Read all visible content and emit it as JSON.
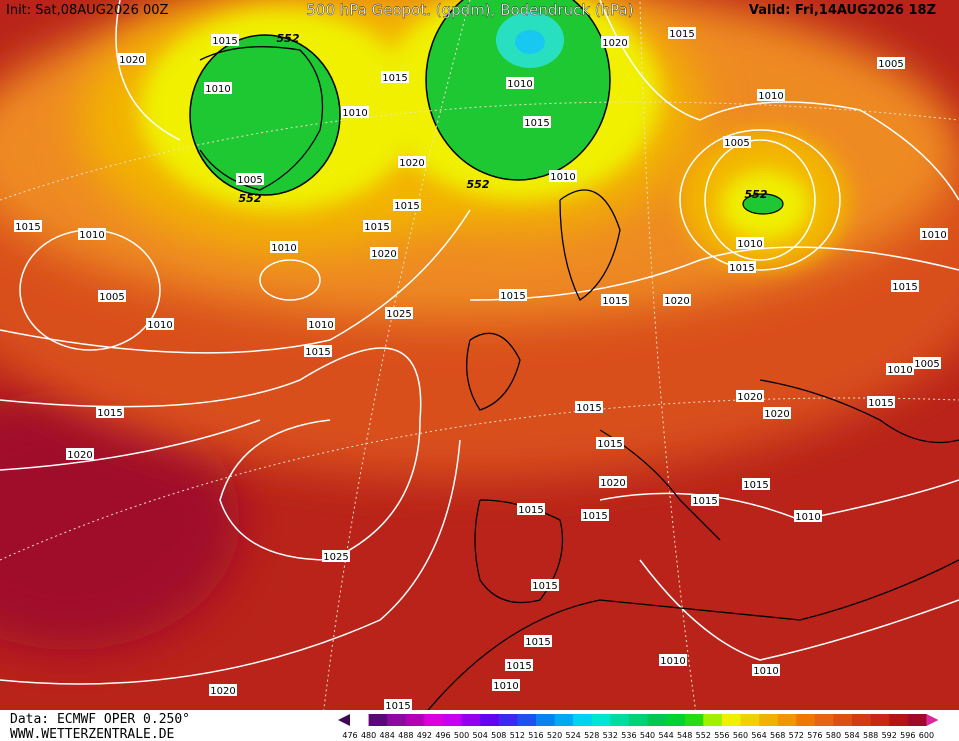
{
  "header": {
    "init": "Init: Sat,08AUG2026 00Z",
    "title": "500 hPa Geopot. (gpdm), Bodendruck (hPa)",
    "valid": "Valid: Fri,14AUG2026 18Z"
  },
  "footer": {
    "source": "Data: ECMWF OPER 0.250°",
    "website": "WWW.WETTERZENTRALE.DE"
  },
  "isobar_labels": [
    "1015",
    "552",
    "1020",
    "1010",
    "1015",
    "1010",
    "1020",
    "1015",
    "1010",
    "1015",
    "1005",
    "1010",
    "1005",
    "552",
    "1010",
    "1015",
    "1020",
    "1010",
    "552",
    "1005",
    "552",
    "1015",
    "1015",
    "1015",
    "1010",
    "1010",
    "1020",
    "1010",
    "1005",
    "1015",
    "1015",
    "1020",
    "1015",
    "1010",
    "1010",
    "1025",
    "1015",
    "1005",
    "1010",
    "1015",
    "1020",
    "1020",
    "1015",
    "1015",
    "1015",
    "1020",
    "1020",
    "1015",
    "1015",
    "1015",
    "1015",
    "1010",
    "1025",
    "1015",
    "1015",
    "1015",
    "1010",
    "1010",
    "1010",
    "1020",
    "1015"
  ],
  "colorbar": {
    "labels": [
      476,
      480,
      484,
      488,
      492,
      496,
      500,
      504,
      508,
      512,
      516,
      520,
      524,
      528,
      532,
      536,
      540,
      544,
      548,
      552,
      556,
      560,
      564,
      568,
      572,
      576,
      580,
      584,
      588,
      592,
      596,
      600
    ],
    "colors": [
      "#3c0a50",
      "#5a0a78",
      "#8c0aa0",
      "#b400b4",
      "#dc00dc",
      "#c800f0",
      "#9600f0",
      "#6400f0",
      "#3c28f0",
      "#1e50f0",
      "#0a82f0",
      "#00aaf0",
      "#00d2f0",
      "#00e6d2",
      "#00dca0",
      "#00d278",
      "#00c850",
      "#00d232",
      "#28dc14",
      "#a0f000",
      "#f0f000",
      "#f0d200",
      "#f0b400",
      "#f09600",
      "#f07800",
      "#e66414",
      "#dc5014",
      "#d23c14",
      "#c82814",
      "#b41414",
      "#a00a28",
      "#dc28a0"
    ]
  }
}
